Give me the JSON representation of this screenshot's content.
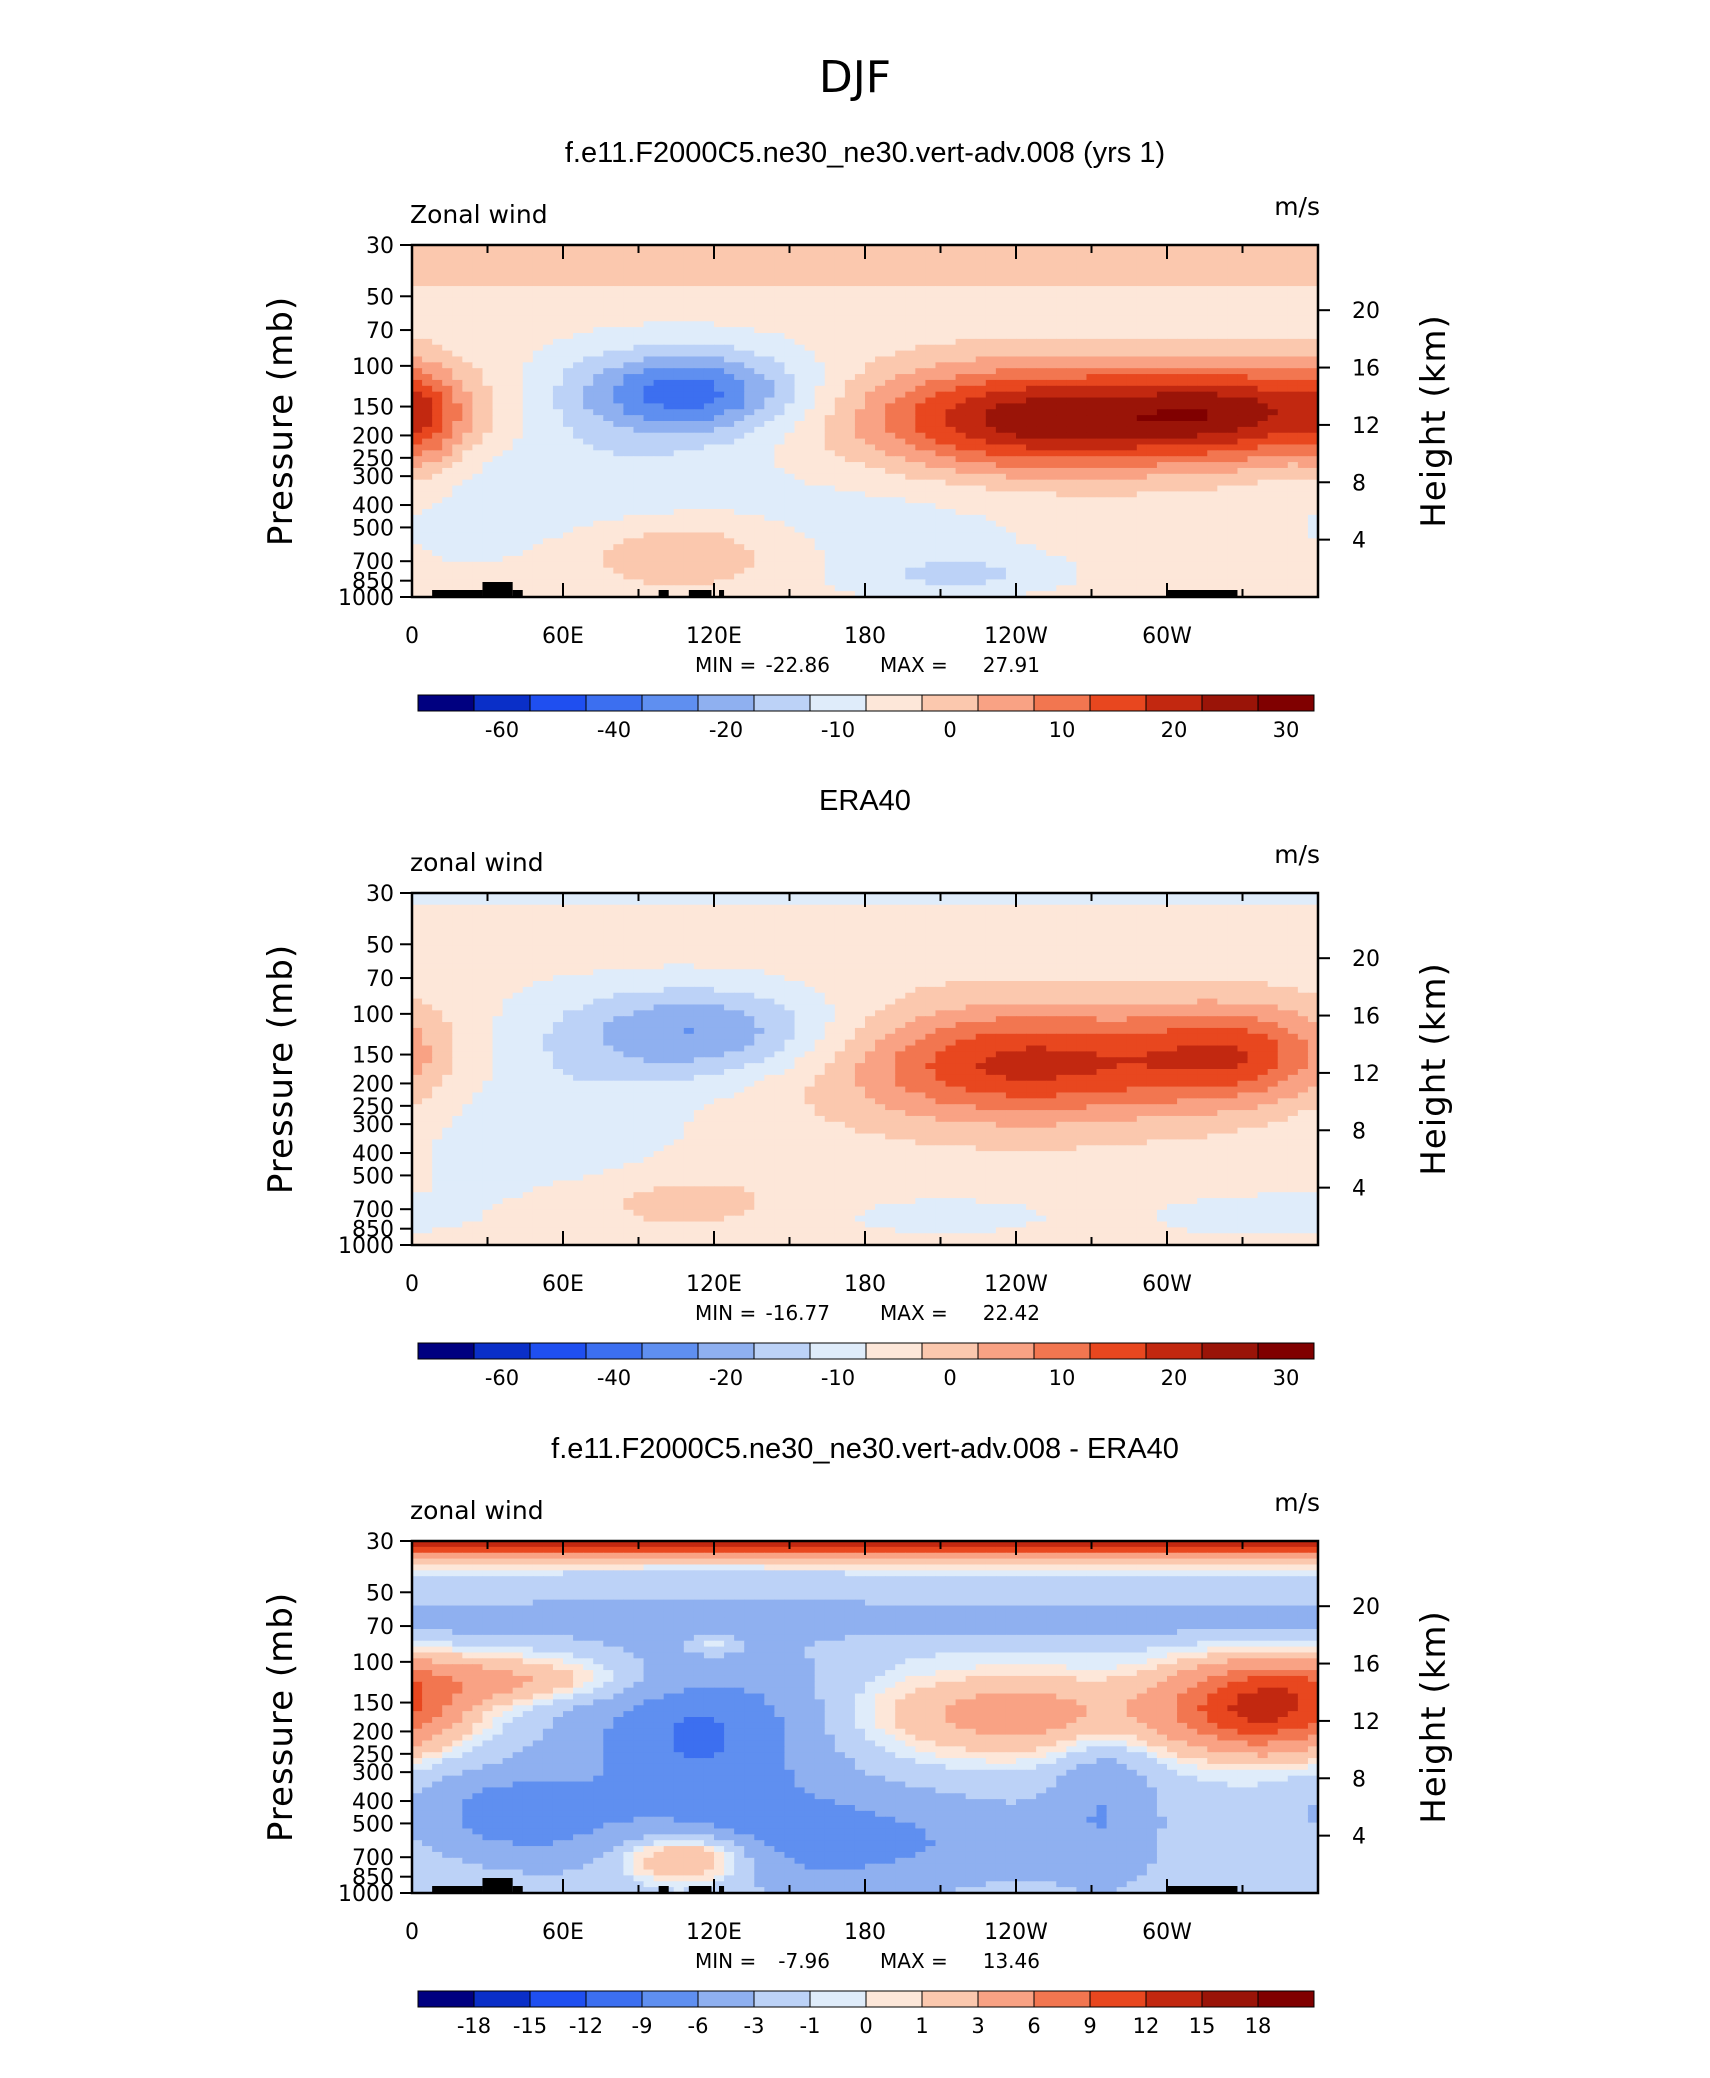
{
  "figure_title": "DJF",
  "x_ticks": [
    "0",
    "60E",
    "120E",
    "180",
    "120W",
    "60W"
  ],
  "p_ticks": [
    "30",
    "50",
    "70",
    "100",
    "150",
    "200",
    "250",
    "300",
    "400",
    "500",
    "700",
    "850",
    "1000"
  ],
  "h_ticks": [
    "20",
    "16",
    "12",
    "8",
    "4"
  ],
  "y_label": "Pressure (mb)",
  "y2_label": "Height (km)",
  "panels": [
    {
      "title": "f.e11.F2000C5.ne30_ne30.vert-adv.008 (yrs 1)",
      "left_label": "Zonal wind",
      "right_label": "m/s",
      "min_label": "MIN =",
      "min_value": "-22.86",
      "max_label": "MAX =",
      "max_value": "27.91",
      "colorbar_ticks": [
        "-60",
        "-40",
        "-20",
        "-10",
        "0",
        "10",
        "20",
        "30"
      ]
    },
    {
      "title": "ERA40",
      "left_label": "zonal wind",
      "right_label": "m/s",
      "min_label": "MIN =",
      "min_value": "-16.77",
      "max_label": "MAX =",
      "max_value": "22.42",
      "colorbar_ticks": [
        "-60",
        "-40",
        "-20",
        "-10",
        "0",
        "10",
        "20",
        "30"
      ]
    },
    {
      "title": "f.e11.F2000C5.ne30_ne30.vert-adv.008 - ERA40",
      "left_label": "zonal wind",
      "right_label": "m/s",
      "min_label": "MIN =",
      "min_value": "-7.96",
      "max_label": "MAX =",
      "max_value": "13.46",
      "colorbar_ticks": [
        "-18",
        "-15",
        "-12",
        "-9",
        "-6",
        "-3",
        "-1",
        "0",
        "1",
        "3",
        "6",
        "9",
        "12",
        "15",
        "18"
      ]
    }
  ],
  "colors": {
    "palette": [
      "#000080",
      "#0a2fc8",
      "#1f4ff0",
      "#3c6ff0",
      "#5f8ff0",
      "#8fb0f0",
      "#bcd2f7",
      "#dfecfa",
      "#fde7d9",
      "#fbc8ae",
      "#f9a284",
      "#f27650",
      "#e8471f",
      "#c22810",
      "#9a1408",
      "#800000"
    ]
  },
  "chart_data": [
    {
      "type": "heatmap",
      "title": "f.e11.F2000C5.ne30_ne30.vert-adv.008 (yrs 1)",
      "variable": "Zonal wind",
      "units": "m/s",
      "x": "longitude 0-360",
      "y": "pressure 1000-30 mb",
      "min": -22.86,
      "max": 27.91,
      "levels": [
        -60,
        -40,
        -20,
        -10,
        0,
        10,
        20,
        30
      ],
      "features": [
        {
          "type": "jet",
          "lon": 245,
          "p": 170,
          "peak": 27.91
        },
        {
          "type": "jet",
          "lon": 330,
          "p": 160,
          "peak": 24
        },
        {
          "type": "easterly",
          "lon": 110,
          "p": 130,
          "peak": -22.86
        },
        {
          "type": "westerly_band",
          "p": 30,
          "value": 6
        }
      ]
    },
    {
      "type": "heatmap",
      "title": "ERA40",
      "variable": "zonal wind",
      "units": "m/s",
      "x": "longitude 0-360",
      "y": "pressure 1000-30 mb",
      "min": -16.77,
      "max": 22.42,
      "levels": [
        -60,
        -40,
        -20,
        -10,
        0,
        10,
        20,
        30
      ],
      "features": [
        {
          "type": "jet",
          "lon": 243,
          "p": 165,
          "peak": 22.42
        },
        {
          "type": "jet",
          "lon": 330,
          "p": 150,
          "peak": 18
        },
        {
          "type": "easterly",
          "lon": 115,
          "p": 120,
          "peak": -16.77
        }
      ]
    },
    {
      "type": "heatmap",
      "title": "f.e11.F2000C5.ne30_ne30.vert-adv.008 - ERA40",
      "variable": "zonal wind",
      "units": "m/s",
      "x": "longitude 0-360",
      "y": "pressure 1000-30 mb",
      "min": -7.96,
      "max": 13.46,
      "levels": [
        -18,
        -15,
        -12,
        -9,
        -6,
        -3,
        -1,
        0,
        1,
        3,
        6,
        9,
        12,
        15,
        18
      ],
      "features": [
        {
          "type": "positive_band",
          "p": 30,
          "value": 12
        },
        {
          "type": "positive",
          "lon": 340,
          "p": 160,
          "peak": 13.46
        },
        {
          "type": "negative",
          "lon": 115,
          "p": 200,
          "peak": -7.96
        }
      ]
    }
  ]
}
